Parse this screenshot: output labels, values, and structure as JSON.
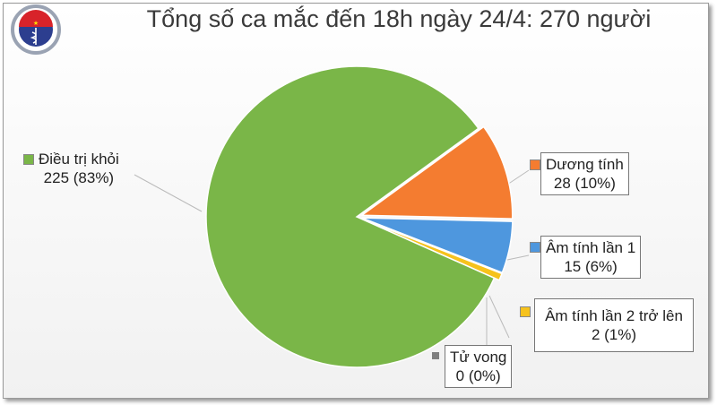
{
  "logo_text": [
    "BỘ Y TẾ",
    "MINISTRY OF HEALTH"
  ],
  "chart_data": {
    "type": "pie",
    "title": "Tổng số ca mắc đến 18h ngày 24/4: 270 người",
    "slices": [
      {
        "name": "Dương tính",
        "value": 28,
        "percent": "10%",
        "color": "#f47c30"
      },
      {
        "name": "Âm tính lần 1",
        "value": 15,
        "percent": "6%",
        "color": "#4e97de"
      },
      {
        "name": "Âm tính lần 2 trở lên",
        "value": 2,
        "percent": "1%",
        "color": "#f6c21c"
      },
      {
        "name": "Điều trị khỏi",
        "value": 225,
        "percent": "83%",
        "color": "#7ab648"
      },
      {
        "name": "Tử vong",
        "value": 0,
        "percent": "0%",
        "color": "#7f7f7f"
      }
    ],
    "labels": {
      "s0": {
        "name": "Dương tính",
        "value": "28 (10%)"
      },
      "s1": {
        "name": "Âm tính lần 1",
        "value": "15 (6%)"
      },
      "s2": {
        "name": "Âm tính lần 2 trở lên",
        "value": "2 (1%)"
      },
      "s3": {
        "name": "Điều trị khỏi",
        "value": "225 (83%)"
      },
      "s4": {
        "name": "Tử vong",
        "value": "0 (0%)"
      }
    }
  }
}
